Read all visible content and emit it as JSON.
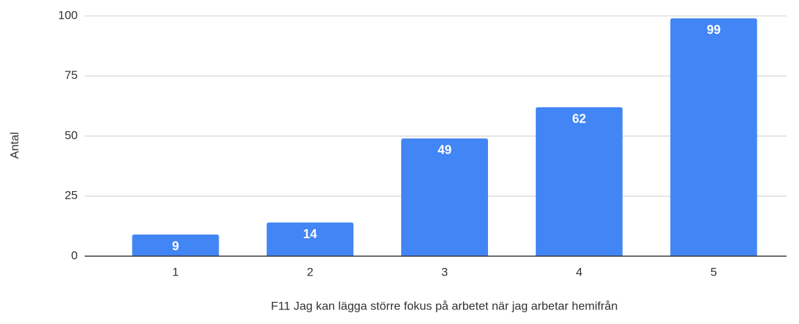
{
  "chart_data": {
    "type": "bar",
    "x_label": "F11 Jag kan lägga större fokus på arbetet när jag arbetar hemifrån",
    "y_label": "Antal",
    "categories": [
      "1",
      "2",
      "3",
      "4",
      "5"
    ],
    "values": [
      9,
      14,
      49,
      62,
      99
    ],
    "color": "#4285f4",
    "ylim": [
      0,
      100
    ],
    "yticks": [
      0,
      25,
      50,
      75,
      100
    ],
    "grid": true
  }
}
